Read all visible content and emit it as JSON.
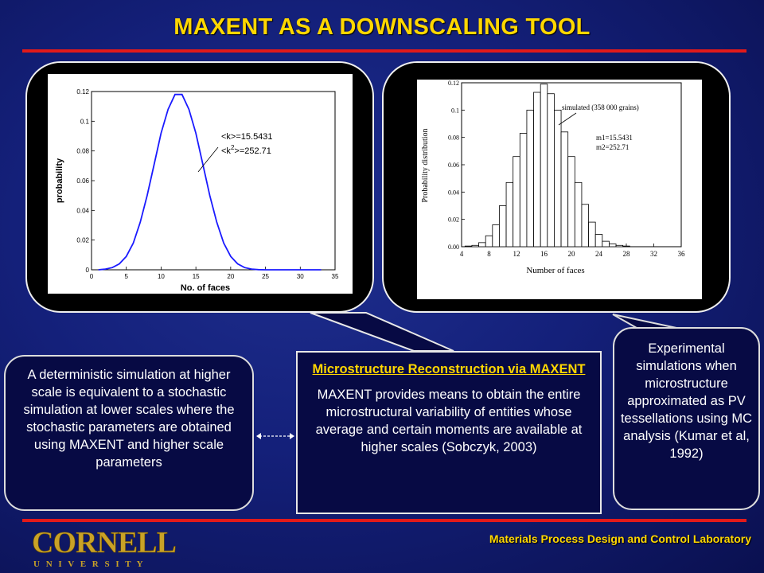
{
  "slide": {
    "title": "MAXENT AS A DOWNSCALING TOOL",
    "footer_lab": "Materials Process Design and Control Laboratory",
    "logo_word": "CORNELL",
    "logo_sub": "U N I V E R S I T Y"
  },
  "colors": {
    "title": "#ffd700",
    "rule": "#e21a1a",
    "curve": "#1a1aff"
  },
  "left_plot": {
    "ylabel": "probability",
    "xlabel": "No. of faces",
    "annot1": "<k>=15.5431",
    "annot2": "<k",
    "annot2_sup": "2",
    "annot2_tail": ">=252.71",
    "xticks": [
      "0",
      "5",
      "10",
      "15",
      "20",
      "25",
      "30",
      "35"
    ],
    "yticks": [
      "0",
      "0.02",
      "0.04",
      "0.06",
      "0.08",
      "0.1",
      "0.12"
    ]
  },
  "right_plot": {
    "ylabel": "Probability distribution",
    "xlabel": "Number of faces",
    "annot_sim": "simulated (358 000 grains)",
    "annot_m1": "m1=15.5431",
    "annot_m2": "m2=252.71",
    "xticks": [
      "4",
      "8",
      "12",
      "16",
      "20",
      "24",
      "28",
      "32",
      "36"
    ],
    "yticks": [
      "0.00",
      "0.02",
      "0.04",
      "0.06",
      "0.08",
      "0.1",
      "0.12"
    ]
  },
  "chart_data": [
    {
      "type": "line",
      "xlabel": "No. of faces",
      "ylabel": "probability",
      "xlim": [
        0,
        35
      ],
      "ylim": [
        0,
        0.12
      ],
      "x": [
        1,
        2,
        3,
        4,
        5,
        6,
        7,
        8,
        9,
        10,
        11,
        12,
        13,
        14,
        15,
        16,
        17,
        18,
        19,
        20,
        21,
        22,
        23,
        24,
        25,
        26,
        27,
        28,
        29,
        30,
        31,
        32,
        33
      ],
      "y": [
        0,
        0.0005,
        0.0015,
        0.004,
        0.009,
        0.018,
        0.032,
        0.05,
        0.071,
        0.092,
        0.108,
        0.118,
        0.118,
        0.108,
        0.092,
        0.071,
        0.05,
        0.032,
        0.018,
        0.009,
        0.004,
        0.0015,
        0.0005,
        0.0001,
        0,
        0,
        0,
        0,
        0,
        0,
        0,
        0,
        0
      ],
      "annotations": [
        "<k>=15.5431",
        "<k2>=252.71"
      ]
    },
    {
      "type": "bar",
      "xlabel": "Number of faces",
      "ylabel": "Probability distribution",
      "xlim": [
        4,
        36
      ],
      "ylim": [
        0,
        0.12
      ],
      "x": [
        5,
        6,
        7,
        8,
        9,
        10,
        11,
        12,
        13,
        14,
        15,
        16,
        17,
        18,
        19,
        20,
        21,
        22,
        23,
        24,
        25,
        26,
        27,
        28
      ],
      "values": [
        0.0005,
        0.001,
        0.003,
        0.008,
        0.016,
        0.03,
        0.047,
        0.066,
        0.083,
        0.1,
        0.113,
        0.119,
        0.112,
        0.1,
        0.084,
        0.066,
        0.047,
        0.031,
        0.018,
        0.009,
        0.004,
        0.002,
        0.001,
        0.0005
      ],
      "annotations": [
        "simulated (358 000 grains)",
        "m1=15.5431",
        "m2=252.71"
      ]
    }
  ],
  "text_left": "A deterministic simulation at higher scale is equivalent to a stochastic simulation at lower scales where the stochastic parameters are obtained using MAXENT and higher scale parameters",
  "text_center_head": "Microstructure Reconstruction via MAXENT",
  "text_center_body": "MAXENT provides means to obtain the entire microstructural variability of entities whose average and certain moments are available at higher scales (Sobczyk, 2003)",
  "text_right": "Experimental simulations when microstructure approximated as PV tessellations using MC analysis (Kumar et al, 1992)"
}
